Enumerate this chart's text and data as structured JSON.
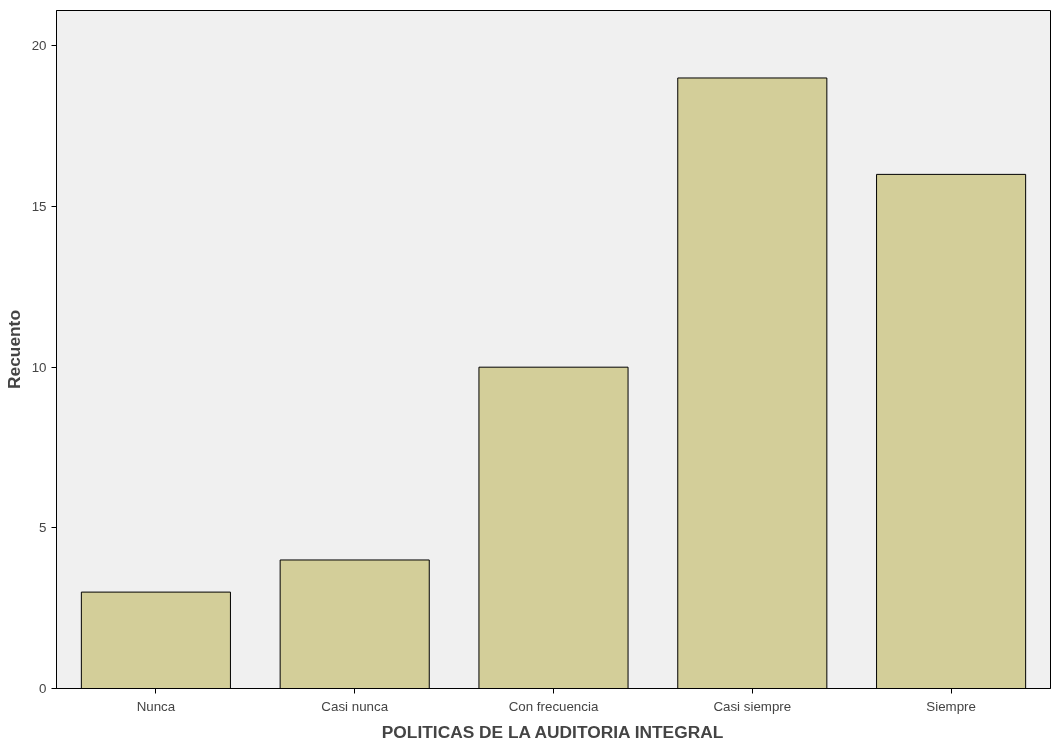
{
  "chart_data": {
    "type": "bar",
    "xlabel": "POLITICAS DE LA AUDITORIA INTEGRAL",
    "ylabel": "Recuento",
    "categories": [
      "Nunca",
      "Casi nunca",
      "Con frecuencia",
      "Casi siempre",
      "Siempre"
    ],
    "values": [
      3,
      4,
      10,
      19,
      16
    ],
    "color": "#d3ce99",
    "ylim": [
      0,
      21.1
    ],
    "yticks": [
      0,
      5,
      10,
      15,
      20
    ],
    "grid": false
  }
}
